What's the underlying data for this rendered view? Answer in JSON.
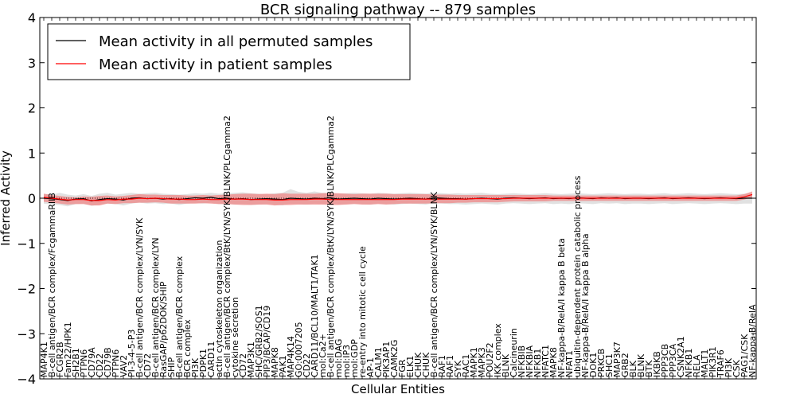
{
  "chart_data": {
    "type": "line",
    "title": "BCR signaling pathway -- 879 samples",
    "xlabel": "Cellular Entities",
    "ylabel": "Inferred Activity",
    "ylim": [
      -4,
      4
    ],
    "yticks": [
      -4,
      -3,
      -2,
      -1,
      0,
      1,
      2,
      3,
      4
    ],
    "ytick_labels": [
      "−4",
      "−3",
      "−2",
      "−1",
      "0",
      "1",
      "2",
      "3",
      "4"
    ],
    "legend": {
      "position": "top-left",
      "entries": [
        {
          "label": "Mean activity in all permuted samples",
          "color": "#000000"
        },
        {
          "label": "Mean activity in patient samples",
          "color": "#ff0000"
        }
      ]
    },
    "colors": {
      "patient_line": "#ff0000",
      "patient_band": "#f08080",
      "permuted_line": "#000000",
      "permuted_band": "#c8c8c8"
    },
    "categories": [
      "MAP4K1",
      "B-cell antigen/BCR complex/FcgammaRIIB",
      "FCGR2B",
      "Fam22/HPK1",
      "SH2B1",
      "PTPN6",
      "CD79A",
      "CD22",
      "CD79B",
      "PTPN6",
      "VAV2",
      "PI-3-4-5-P3",
      "B-cell antigen/BCR complex/LYN/SYK",
      "CD72",
      "B-cell antigen/BCR complex/LYN",
      "RasGAP/p62DOK/SHIP",
      "SHIP",
      "B-cell antigen/BCR complex",
      "BCR complex",
      "PI3K",
      "PDPK1",
      "CARD11",
      "actin cytoskeleton organization",
      "B-cell antigen/BCR complex/BtK/LYN/SYK/BLNK/PLCgamma2",
      "cytokine secretion",
      "CD72",
      "MAP3K1",
      "SHC/GRB2/SOS1",
      "PIP3/BCAP/CD19",
      "MAPK8",
      "PAK1",
      "MAP4K14",
      "GO:0007205",
      "CD22",
      "CARD11/BCL10/MALT1/TAK1",
      "mol:Ca2+",
      "B-cell antigen/BCR complex/BtK/LYN/SYK/BLNK/PLCgamma2",
      "mol:DAG",
      "mol:IP3",
      "mol:GDP",
      "re-entry into mitotic cell cycle",
      "AP-1",
      "CALM1",
      "PIK3AP1",
      "CAMK2G",
      "FGR",
      "ELK1",
      "CHUK",
      "CHUK",
      "B-cell antigen/BCR complex/LYN/SYK/BLNK",
      "RAF1",
      "RAF1",
      "SYK",
      "RAC1",
      "MAPK1",
      "MAPK3",
      "POU2F2",
      "IKK complex",
      "BLNK",
      "Calcineurin",
      "NFKBIB",
      "NFKBIA",
      "NFKB1",
      "NFATC1",
      "MAPK8",
      "NF-kappa-B/RelA/I kappa B beta",
      "NFAT1",
      "ubiquitin-dependent protein catabolic process",
      "NF-kappa-B/RelA/I kappa B alpha",
      "DOK1",
      "PRKCB",
      "SHC1",
      "MAP3K7",
      "GRB2",
      "BLK",
      "BLNK",
      "BTK",
      "IKBKB",
      "PPP3CB",
      "PPP3CA",
      "CSNK2A1",
      "NFKB1",
      "RELA",
      "MALT1",
      "PIK3R1",
      "TRAF6",
      "PI3K",
      "CSK",
      "PAG1/CSK",
      "NF-kappa-B/RelA"
    ],
    "series": [
      {
        "name": "Mean activity in all permuted samples",
        "values": [
          0.0,
          -0.01,
          -0.03,
          -0.05,
          -0.02,
          -0.01,
          -0.06,
          -0.03,
          -0.01,
          -0.02,
          -0.04,
          0.0,
          0.01,
          -0.01,
          0.0,
          -0.02,
          -0.01,
          -0.03,
          -0.01,
          0.01,
          0.0,
          0.02,
          -0.01,
          0.0,
          -0.02,
          -0.01,
          -0.03,
          -0.02,
          -0.01,
          -0.02,
          -0.03,
          0.0,
          -0.01,
          -0.02,
          0.0,
          -0.01,
          0.01,
          -0.02,
          -0.01,
          0.0,
          -0.01,
          -0.02,
          0.0,
          -0.01,
          -0.02,
          -0.01,
          0.0,
          -0.01,
          -0.02,
          0.01,
          0.0,
          -0.01,
          -0.01,
          -0.02,
          -0.01,
          0.0,
          -0.01,
          -0.02,
          0.0,
          0.01,
          0.0,
          -0.01,
          0.0,
          0.01,
          -0.01,
          0.0,
          -0.01,
          0.01,
          0.0,
          -0.01,
          0.01,
          0.0,
          0.01,
          -0.01,
          0.0,
          0.0,
          -0.01,
          0.0,
          0.01,
          -0.01,
          0.0,
          0.01,
          0.0,
          -0.01,
          0.0,
          0.01,
          0.0,
          -0.01,
          0.0,
          0.0
        ]
      },
      {
        "name": "Mean activity in patient samples",
        "values": [
          0.02,
          0.0,
          -0.02,
          -0.04,
          -0.03,
          -0.03,
          -0.05,
          -0.05,
          -0.03,
          -0.04,
          -0.02,
          -0.02,
          0.0,
          -0.01,
          0.0,
          -0.01,
          -0.02,
          -0.02,
          -0.03,
          -0.03,
          -0.02,
          -0.03,
          -0.03,
          -0.02,
          -0.02,
          -0.02,
          -0.03,
          -0.03,
          -0.03,
          -0.04,
          -0.04,
          -0.03,
          -0.03,
          -0.03,
          -0.02,
          -0.02,
          -0.03,
          -0.03,
          -0.03,
          -0.03,
          -0.03,
          -0.03,
          -0.03,
          -0.03,
          -0.03,
          -0.02,
          -0.02,
          -0.02,
          -0.02,
          -0.02,
          -0.02,
          -0.02,
          -0.02,
          -0.02,
          -0.01,
          -0.01,
          -0.01,
          -0.01,
          -0.01,
          0.0,
          0.0,
          0.0,
          0.0,
          0.0,
          0.0,
          0.0,
          0.0,
          0.0,
          0.0,
          0.0,
          0.0,
          0.0,
          0.0,
          0.0,
          0.0,
          0.0,
          0.0,
          0.0,
          0.0,
          0.0,
          0.0,
          0.0,
          0.0,
          0.0,
          0.0,
          0.0,
          0.0,
          0.0,
          0.03,
          0.08
        ]
      }
    ],
    "patient_band": {
      "upper": [
        0.1,
        0.07,
        0.05,
        0.03,
        0.02,
        0.04,
        0.03,
        0.05,
        0.06,
        0.04,
        0.05,
        0.07,
        0.09,
        0.08,
        0.08,
        0.07,
        0.07,
        0.07,
        0.06,
        0.06,
        0.07,
        0.06,
        0.07,
        0.08,
        0.09,
        0.1,
        0.1,
        0.09,
        0.1,
        0.09,
        0.11,
        0.1,
        0.1,
        0.1,
        0.1,
        0.11,
        0.11,
        0.11,
        0.1,
        0.09,
        0.1,
        0.1,
        0.1,
        0.1,
        0.09,
        0.09,
        0.09,
        0.09,
        0.09,
        0.08,
        0.08,
        0.08,
        0.07,
        0.07,
        0.07,
        0.07,
        0.07,
        0.07,
        0.07,
        0.07,
        0.07,
        0.07,
        0.07,
        0.07,
        0.06,
        0.06,
        0.06,
        0.06,
        0.06,
        0.06,
        0.06,
        0.06,
        0.06,
        0.06,
        0.06,
        0.06,
        0.06,
        0.06,
        0.06,
        0.06,
        0.06,
        0.06,
        0.06,
        0.06,
        0.06,
        0.06,
        0.06,
        0.06,
        0.09,
        0.15
      ],
      "lower": [
        -0.08,
        -0.1,
        -0.12,
        -0.14,
        -0.13,
        -0.13,
        -0.16,
        -0.16,
        -0.12,
        -0.13,
        -0.11,
        -0.11,
        -0.1,
        -0.1,
        -0.09,
        -0.1,
        -0.12,
        -0.12,
        -0.12,
        -0.12,
        -0.11,
        -0.12,
        -0.13,
        -0.13,
        -0.14,
        -0.15,
        -0.15,
        -0.14,
        -0.14,
        -0.16,
        -0.15,
        -0.15,
        -0.14,
        -0.14,
        -0.14,
        -0.14,
        -0.15,
        -0.15,
        -0.14,
        -0.13,
        -0.14,
        -0.14,
        -0.13,
        -0.14,
        -0.13,
        -0.12,
        -0.12,
        -0.12,
        -0.12,
        -0.11,
        -0.11,
        -0.11,
        -0.1,
        -0.1,
        -0.09,
        -0.09,
        -0.09,
        -0.09,
        -0.08,
        -0.07,
        -0.07,
        -0.07,
        -0.07,
        -0.07,
        -0.06,
        -0.06,
        -0.06,
        -0.06,
        -0.06,
        -0.06,
        -0.06,
        -0.06,
        -0.06,
        -0.06,
        -0.06,
        -0.06,
        -0.06,
        -0.06,
        -0.06,
        -0.06,
        -0.06,
        -0.06,
        -0.06,
        -0.06,
        -0.06,
        -0.06,
        -0.06,
        -0.06,
        -0.03,
        0.02
      ]
    },
    "permuted_band": {
      "upper": [
        0.1,
        0.08,
        0.12,
        0.08,
        0.06,
        0.09,
        0.05,
        0.1,
        0.12,
        0.08,
        0.1,
        0.12,
        0.1,
        0.11,
        0.12,
        0.1,
        0.09,
        0.08,
        0.09,
        0.11,
        0.1,
        0.12,
        0.1,
        0.11,
        0.12,
        0.13,
        0.11,
        0.1,
        0.09,
        0.11,
        0.12,
        0.2,
        0.14,
        0.12,
        0.15,
        0.12,
        0.13,
        0.1,
        0.11,
        0.12,
        0.11,
        0.1,
        0.12,
        0.11,
        0.1,
        0.11,
        0.12,
        0.11,
        0.1,
        0.12,
        0.11,
        0.1,
        0.11,
        0.1,
        0.11,
        0.12,
        0.1,
        0.09,
        0.1,
        0.11,
        0.1,
        0.09,
        0.1,
        0.11,
        0.1,
        0.09,
        0.1,
        0.11,
        0.1,
        0.09,
        0.1,
        0.11,
        0.1,
        0.09,
        0.1,
        0.1,
        0.09,
        0.1,
        0.11,
        0.09,
        0.1,
        0.11,
        0.1,
        0.09,
        0.1,
        0.11,
        0.1,
        0.09,
        0.1,
        0.1
      ],
      "lower": [
        -0.12,
        -0.14,
        -0.15,
        -0.18,
        -0.13,
        -0.12,
        -0.17,
        -0.14,
        -0.12,
        -0.13,
        -0.16,
        -0.12,
        -0.1,
        -0.12,
        -0.11,
        -0.13,
        -0.12,
        -0.15,
        -0.12,
        -0.11,
        -0.12,
        -0.1,
        -0.13,
        -0.12,
        -0.14,
        -0.13,
        -0.15,
        -0.14,
        -0.13,
        -0.14,
        -0.16,
        -0.12,
        -0.13,
        -0.14,
        -0.12,
        -0.13,
        -0.11,
        -0.14,
        -0.13,
        -0.12,
        -0.13,
        -0.14,
        -0.12,
        -0.13,
        -0.14,
        -0.13,
        -0.12,
        -0.13,
        -0.14,
        -0.11,
        -0.12,
        -0.13,
        -0.13,
        -0.14,
        -0.13,
        -0.12,
        -0.13,
        -0.14,
        -0.12,
        -0.11,
        -0.12,
        -0.13,
        -0.12,
        -0.11,
        -0.13,
        -0.12,
        -0.13,
        -0.11,
        -0.12,
        -0.13,
        -0.11,
        -0.12,
        -0.11,
        -0.13,
        -0.12,
        -0.12,
        -0.13,
        -0.12,
        -0.11,
        -0.13,
        -0.12,
        -0.11,
        -0.12,
        -0.13,
        -0.12,
        -0.11,
        -0.12,
        -0.13,
        -0.12,
        -0.12
      ]
    }
  }
}
